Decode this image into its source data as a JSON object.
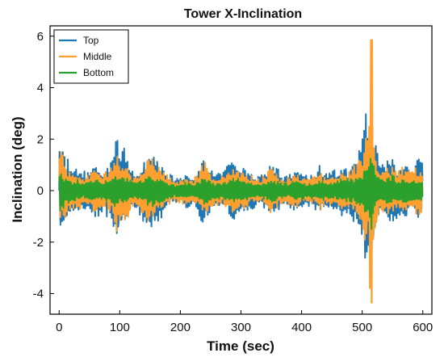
{
  "chart_data": {
    "type": "line",
    "title": "Tower X-Inclination",
    "xlabel": "Time (sec)",
    "ylabel": "Inclination (deg)",
    "xlim": [
      -15,
      615
    ],
    "ylim": [
      -4.8,
      6.4
    ],
    "xticks": [
      0,
      100,
      200,
      300,
      400,
      500,
      600
    ],
    "yticks": [
      -4,
      -2,
      0,
      2,
      4,
      6
    ],
    "legend_position": "top-left",
    "grid": false,
    "series": [
      {
        "name": "Top",
        "color": "#1f77b4",
        "x": [
          0,
          10,
          20,
          30,
          40,
          50,
          60,
          70,
          80,
          90,
          95,
          100,
          110,
          120,
          130,
          140,
          150,
          160,
          170,
          180,
          190,
          200,
          210,
          220,
          230,
          240,
          250,
          260,
          270,
          280,
          290,
          300,
          310,
          320,
          330,
          340,
          350,
          360,
          370,
          380,
          390,
          400,
          410,
          420,
          430,
          440,
          450,
          460,
          470,
          480,
          490,
          500,
          505,
          510,
          515,
          520,
          525,
          530,
          540,
          550,
          560,
          570,
          580,
          590,
          600
        ],
        "amplitude": [
          2.0,
          1.5,
          0.9,
          1.0,
          0.8,
          0.9,
          1.2,
          0.9,
          1.1,
          1.6,
          2.2,
          1.5,
          1.7,
          0.8,
          0.9,
          1.3,
          1.8,
          1.4,
          1.1,
          0.7,
          0.5,
          0.6,
          0.8,
          0.5,
          1.0,
          1.5,
          0.9,
          0.8,
          0.7,
          1.1,
          1.3,
          1.1,
          0.9,
          0.7,
          0.6,
          0.8,
          1.2,
          0.9,
          0.6,
          0.7,
          0.9,
          0.8,
          0.6,
          0.8,
          1.0,
          0.7,
          0.8,
          0.9,
          1.1,
          1.0,
          1.4,
          2.0,
          3.2,
          2.5,
          3.3,
          2.0,
          1.6,
          1.0,
          1.3,
          1.4,
          1.0,
          1.2,
          0.9,
          1.2,
          1.3
        ]
      },
      {
        "name": "Middle",
        "color": "#ff9f2f",
        "x": [
          0,
          10,
          20,
          30,
          40,
          50,
          60,
          70,
          80,
          90,
          95,
          100,
          110,
          120,
          130,
          140,
          150,
          160,
          170,
          180,
          190,
          200,
          210,
          220,
          230,
          240,
          250,
          260,
          270,
          280,
          290,
          300,
          310,
          320,
          330,
          340,
          350,
          360,
          370,
          380,
          390,
          400,
          410,
          420,
          430,
          440,
          450,
          460,
          470,
          480,
          490,
          500,
          505,
          510,
          515,
          520,
          525,
          530,
          540,
          550,
          560,
          570,
          580,
          590,
          600
        ],
        "amplitude": [
          1.7,
          1.2,
          0.7,
          0.8,
          0.6,
          0.7,
          1.0,
          0.7,
          0.9,
          1.3,
          1.9,
          1.2,
          1.4,
          0.6,
          0.7,
          1.0,
          1.5,
          1.1,
          0.9,
          0.6,
          0.4,
          0.5,
          0.6,
          0.4,
          0.8,
          1.2,
          0.7,
          0.6,
          0.6,
          0.9,
          1.1,
          0.9,
          0.7,
          0.6,
          0.5,
          0.6,
          1.0,
          0.7,
          0.5,
          0.6,
          0.7,
          0.6,
          0.5,
          0.6,
          0.8,
          0.6,
          0.6,
          0.7,
          0.9,
          0.8,
          1.1,
          1.6,
          2.6,
          2.0,
          5.9,
          1.7,
          1.3,
          0.8,
          1.0,
          1.1,
          0.8,
          1.0,
          0.7,
          1.0,
          1.0
        ]
      },
      {
        "name": "Bottom",
        "color": "#2ca02c",
        "x": [
          0,
          10,
          20,
          30,
          40,
          50,
          60,
          70,
          80,
          90,
          95,
          100,
          110,
          120,
          130,
          140,
          150,
          160,
          170,
          180,
          190,
          200,
          210,
          220,
          230,
          240,
          250,
          260,
          270,
          280,
          290,
          300,
          310,
          320,
          330,
          340,
          350,
          360,
          370,
          380,
          390,
          400,
          410,
          420,
          430,
          440,
          450,
          460,
          470,
          480,
          490,
          500,
          505,
          510,
          515,
          520,
          525,
          530,
          540,
          550,
          560,
          570,
          580,
          590,
          600
        ],
        "amplitude": [
          0.9,
          0.6,
          0.4,
          0.45,
          0.35,
          0.4,
          0.5,
          0.4,
          0.45,
          0.6,
          0.8,
          0.55,
          0.6,
          0.35,
          0.4,
          0.5,
          0.7,
          0.55,
          0.45,
          0.3,
          0.25,
          0.3,
          0.35,
          0.25,
          0.4,
          0.55,
          0.4,
          0.35,
          0.3,
          0.45,
          0.5,
          0.45,
          0.4,
          0.3,
          0.3,
          0.35,
          0.5,
          0.4,
          0.3,
          0.3,
          0.4,
          0.35,
          0.3,
          0.35,
          0.45,
          0.35,
          0.35,
          0.4,
          0.5,
          0.45,
          0.6,
          0.8,
          1.1,
          1.0,
          1.8,
          0.9,
          0.7,
          0.45,
          0.55,
          0.6,
          0.45,
          0.5,
          0.4,
          0.5,
          0.55
        ]
      }
    ]
  }
}
